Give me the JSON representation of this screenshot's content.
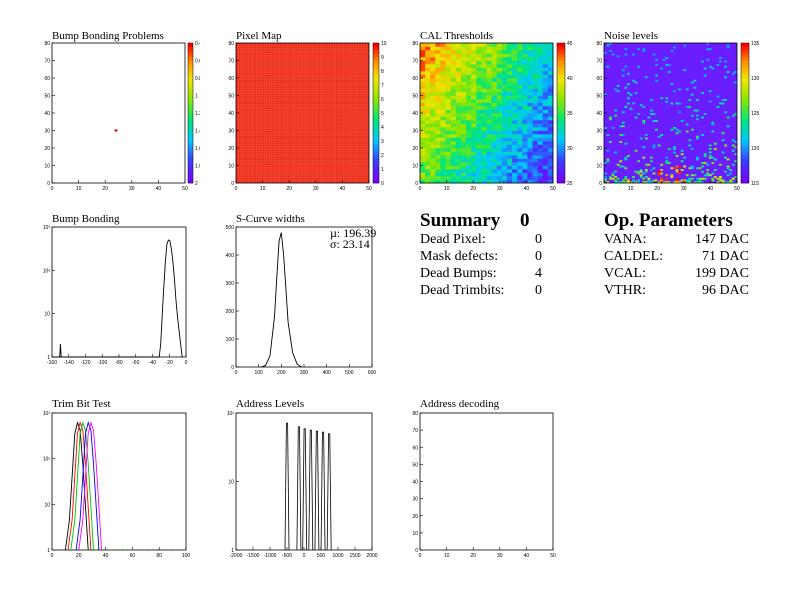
{
  "panels": {
    "bump_map": {
      "title": "Bump Bonding Problems"
    },
    "pixel_map": {
      "title": "Pixel Map"
    },
    "cal_thr": {
      "title": "CAL Thresholds"
    },
    "noise": {
      "title": "Noise levels"
    },
    "bump_hist": {
      "title": "Bump Bonding"
    },
    "scurve": {
      "title": "S-Curve widths",
      "stat_mu": "µ: 196.39",
      "stat_sigma": "σ: 23.14"
    },
    "trim": {
      "title": "Trim Bit Test"
    },
    "addr_levels": {
      "title": "Address Levels"
    },
    "addr_dec": {
      "title": "Address decoding"
    }
  },
  "summary": {
    "title": "Summary",
    "count": "0",
    "rows": [
      {
        "label": "Dead Pixel:",
        "value": "0"
      },
      {
        "label": "Mask defects:",
        "value": "0"
      },
      {
        "label": "Dead Bumps:",
        "value": "4"
      },
      {
        "label": "Dead Trimbits:",
        "value": "0"
      }
    ]
  },
  "op_params": {
    "title": "Op. Parameters",
    "rows": [
      {
        "label": "VANA:",
        "value": "147 DAC"
      },
      {
        "label": "CALDEL:",
        "value": "71 DAC"
      },
      {
        "label": "VCAL:",
        "value": "199 DAC"
      },
      {
        "label": "VTHR:",
        "value": "96 DAC"
      }
    ]
  },
  "chart_data": [
    {
      "id": "bump_map",
      "type": "heatmap",
      "title": "Bump Bonding Problems",
      "xlim": [
        0,
        52
      ],
      "ylim": [
        0,
        80
      ],
      "xticks": [
        "0",
        "10",
        "20",
        "30",
        "40",
        "50"
      ],
      "yticks": [
        "0",
        "10",
        "20",
        "30",
        "40",
        "50",
        "60",
        "70",
        "80"
      ],
      "colorbar_ticks": [
        "0.4",
        "0.6",
        "0.8",
        "1",
        "1.2",
        "1.4",
        "1.6",
        "1.8",
        "2"
      ],
      "points": [
        {
          "x": 25,
          "y": 30
        }
      ],
      "background": "#ffffff"
    },
    {
      "id": "pixel_map",
      "type": "heatmap",
      "title": "Pixel Map",
      "xlim": [
        0,
        52
      ],
      "ylim": [
        0,
        80
      ],
      "xticks": [
        "0",
        "10",
        "20",
        "30",
        "40",
        "50"
      ],
      "yticks": [
        "0",
        "10",
        "20",
        "30",
        "40",
        "50",
        "60",
        "70",
        "80"
      ],
      "colorbar_ticks": [
        "0",
        "1",
        "2",
        "3",
        "4",
        "5",
        "6",
        "7",
        "8",
        "9",
        "10"
      ],
      "uniform_value": 10
    },
    {
      "id": "cal_thr",
      "type": "heatmap",
      "title": "CAL Thresholds",
      "xlim": [
        0,
        52
      ],
      "ylim": [
        0,
        80
      ],
      "xticks": [
        "0",
        "10",
        "20",
        "30",
        "40",
        "50"
      ],
      "yticks": [
        "0",
        "10",
        "20",
        "30",
        "40",
        "50",
        "60",
        "70",
        "80"
      ],
      "colorbar_ticks": [
        "25",
        "30",
        "35",
        "40",
        "45"
      ]
    },
    {
      "id": "noise",
      "type": "heatmap",
      "title": "Noise levels",
      "xlim": [
        0,
        52
      ],
      "ylim": [
        0,
        80
      ],
      "xticks": [
        "0",
        "10",
        "20",
        "30",
        "40",
        "50"
      ],
      "yticks": [
        "0",
        "10",
        "20",
        "30",
        "40",
        "50",
        "60",
        "70",
        "80"
      ],
      "colorbar_ticks": [
        "115",
        "120",
        "125",
        "130",
        "135"
      ]
    },
    {
      "id": "bump_hist",
      "type": "line",
      "title": "Bump Bonding",
      "xlim": [
        -170,
        5
      ],
      "log_y": true,
      "xticks": [
        "-160",
        "-140",
        "-120",
        "-100",
        "-80",
        "-60",
        "-40",
        "-20",
        "0"
      ],
      "yticks": [
        "1",
        "10",
        "10²",
        "10³"
      ],
      "x": [
        -170,
        -160,
        -159,
        -158,
        -30,
        -28,
        -25,
        -22,
        -20,
        -18,
        -16,
        -14,
        -12,
        -10,
        -8,
        -6,
        -4,
        -2,
        0
      ],
      "y": [
        0,
        0,
        2,
        0,
        0,
        2,
        20,
        150,
        400,
        500,
        480,
        300,
        150,
        60,
        20,
        8,
        4,
        2,
        0
      ]
    },
    {
      "id": "scurve",
      "type": "line",
      "title": "S-Curve widths",
      "xlim": [
        0,
        600
      ],
      "ylim": [
        0,
        500
      ],
      "xticks": [
        "0",
        "100",
        "200",
        "300",
        "400",
        "500",
        "600"
      ],
      "yticks": [
        "0",
        "100",
        "200",
        "300",
        "400",
        "500"
      ],
      "x": [
        110,
        130,
        150,
        170,
        180,
        190,
        200,
        210,
        220,
        230,
        250,
        270,
        290
      ],
      "y": [
        0,
        5,
        40,
        180,
        320,
        450,
        480,
        400,
        280,
        160,
        50,
        10,
        0
      ]
    },
    {
      "id": "trim",
      "type": "line",
      "title": "Trim Bit Test",
      "xlim": [
        0,
        100
      ],
      "log_y": true,
      "xticks": [
        "0",
        "20",
        "40",
        "60",
        "80",
        "100"
      ],
      "yticks": [
        "1",
        "10",
        "10²",
        "10³"
      ],
      "series": [
        {
          "color": "#000000",
          "x": [
            10,
            13,
            15,
            17,
            19,
            21,
            23,
            25,
            27
          ],
          "y": [
            0,
            5,
            50,
            500,
            900,
            600,
            100,
            10,
            0
          ]
        },
        {
          "color": "#ff0000",
          "x": [
            12,
            15,
            17,
            19,
            21,
            23,
            25,
            27,
            29
          ],
          "y": [
            0,
            5,
            50,
            500,
            900,
            600,
            100,
            10,
            0
          ]
        },
        {
          "color": "#00c000",
          "x": [
            14,
            17,
            19,
            21,
            23,
            25,
            27,
            29,
            31
          ],
          "y": [
            0,
            5,
            50,
            500,
            900,
            600,
            100,
            10,
            0
          ]
        },
        {
          "color": "#0000ff",
          "x": [
            18,
            21,
            23,
            25,
            27,
            29,
            31,
            33,
            35
          ],
          "y": [
            0,
            5,
            50,
            500,
            900,
            600,
            100,
            10,
            0
          ]
        },
        {
          "color": "#ff00ff",
          "x": [
            20,
            23,
            25,
            27,
            29,
            31,
            33,
            35,
            37
          ],
          "y": [
            0,
            5,
            50,
            500,
            900,
            600,
            100,
            10,
            0
          ]
        }
      ]
    },
    {
      "id": "addr_levels",
      "type": "line",
      "title": "Address Levels",
      "xlim": [
        -2000,
        2000
      ],
      "log_y": true,
      "xticks": [
        "-2000",
        "-1500",
        "-1000",
        "-500",
        "0",
        "500",
        "1000",
        "1500",
        "2000"
      ],
      "yticks": [
        "1",
        "10",
        "10²"
      ],
      "peaks": [
        {
          "x": -500,
          "y": 600
        },
        {
          "x": -150,
          "y": 500
        },
        {
          "x": 20,
          "y": 450
        },
        {
          "x": 200,
          "y": 420
        },
        {
          "x": 380,
          "y": 400
        },
        {
          "x": 560,
          "y": 380
        },
        {
          "x": 740,
          "y": 350
        }
      ]
    },
    {
      "id": "addr_dec",
      "type": "heatmap",
      "title": "Address decoding",
      "xlim": [
        0,
        52
      ],
      "ylim": [
        0,
        80
      ],
      "xticks": [
        "0",
        "10",
        "20",
        "30",
        "40",
        "50"
      ],
      "yticks": [
        "0",
        "10",
        "20",
        "30",
        "40",
        "50",
        "60",
        "70",
        "80"
      ]
    }
  ]
}
